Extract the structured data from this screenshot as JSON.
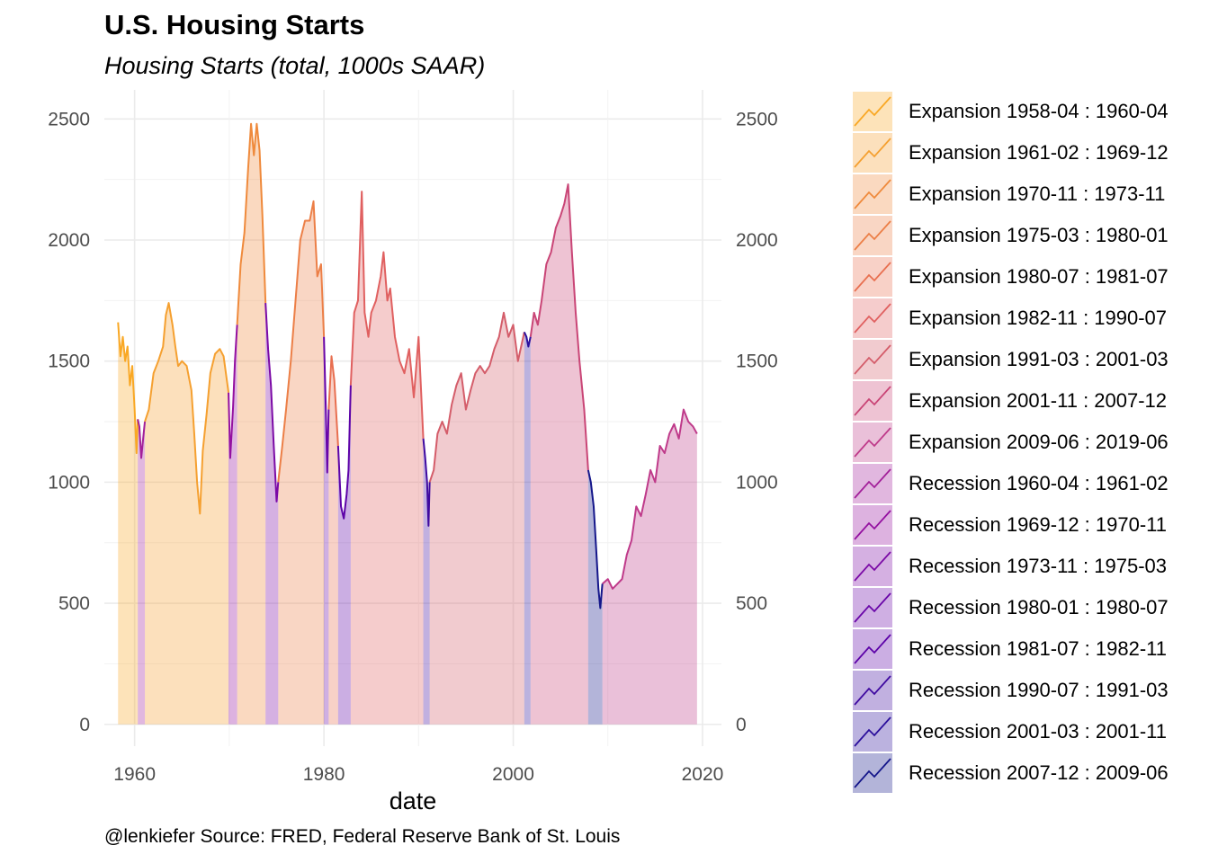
{
  "title": "U.S. Housing Starts",
  "subtitle": "Housing Starts (total, 1000s SAAR)",
  "caption": "@lenkiefer Source: FRED, Federal Reserve Bank of St. Louis",
  "chart_data": {
    "type": "area",
    "xlabel": "date",
    "ylabel": "",
    "xlim": [
      1956.8,
      2022
    ],
    "ylim": [
      -90,
      2620
    ],
    "x_ticks": [
      "1960",
      "1980",
      "2000",
      "2020"
    ],
    "y_ticks_left": [
      "0",
      "500",
      "1000",
      "1500",
      "2000",
      "2500"
    ],
    "y_ticks_right": [
      "0",
      "500",
      "1000",
      "1500",
      "2000",
      "2500"
    ],
    "grid": true,
    "legend_position": "right",
    "periods": [
      {
        "label": "Expansion 1958-04 : 1960-04",
        "start": 1958.25,
        "end": 1960.33,
        "color": "#f9a825",
        "points": [
          [
            1958.25,
            1660
          ],
          [
            1958.5,
            1520
          ],
          [
            1958.75,
            1600
          ],
          [
            1959.0,
            1500
          ],
          [
            1959.25,
            1560
          ],
          [
            1959.5,
            1400
          ],
          [
            1959.75,
            1480
          ],
          [
            1960.0,
            1300
          ],
          [
            1960.2,
            1120
          ],
          [
            1960.33,
            1260
          ]
        ]
      },
      {
        "label": "Expansion 1961-02 : 1969-12",
        "start": 1961.08,
        "end": 1969.92,
        "color": "#f5a030",
        "points": [
          [
            1961.08,
            1250
          ],
          [
            1961.5,
            1300
          ],
          [
            1962.0,
            1450
          ],
          [
            1962.5,
            1500
          ],
          [
            1963.0,
            1560
          ],
          [
            1963.3,
            1690
          ],
          [
            1963.6,
            1740
          ],
          [
            1964.0,
            1650
          ],
          [
            1964.3,
            1560
          ],
          [
            1964.6,
            1480
          ],
          [
            1965.0,
            1500
          ],
          [
            1965.5,
            1480
          ],
          [
            1966.0,
            1380
          ],
          [
            1966.3,
            1200
          ],
          [
            1966.6,
            1000
          ],
          [
            1966.9,
            870
          ],
          [
            1967.2,
            1130
          ],
          [
            1967.6,
            1280
          ],
          [
            1968.0,
            1450
          ],
          [
            1968.5,
            1530
          ],
          [
            1969.0,
            1550
          ],
          [
            1969.4,
            1520
          ],
          [
            1969.92,
            1370
          ]
        ]
      },
      {
        "label": "Expansion 1970-11 : 1973-11",
        "start": 1970.83,
        "end": 1973.83,
        "color": "#ef8a3c",
        "points": [
          [
            1970.83,
            1650
          ],
          [
            1971.2,
            1900
          ],
          [
            1971.6,
            2030
          ],
          [
            1972.0,
            2300
          ],
          [
            1972.3,
            2480
          ],
          [
            1972.6,
            2350
          ],
          [
            1972.9,
            2480
          ],
          [
            1973.2,
            2370
          ],
          [
            1973.5,
            2100
          ],
          [
            1973.83,
            1740
          ]
        ]
      },
      {
        "label": "Expansion 1975-03 : 1980-01",
        "start": 1975.17,
        "end": 1980.0,
        "color": "#ec7f47",
        "points": [
          [
            1975.17,
            1000
          ],
          [
            1975.6,
            1150
          ],
          [
            1976.0,
            1300
          ],
          [
            1976.5,
            1500
          ],
          [
            1977.0,
            1750
          ],
          [
            1977.5,
            2000
          ],
          [
            1978.0,
            2080
          ],
          [
            1978.5,
            2080
          ],
          [
            1978.9,
            2160
          ],
          [
            1979.3,
            1850
          ],
          [
            1979.7,
            1900
          ],
          [
            1980.0,
            1600
          ]
        ]
      },
      {
        "label": "Expansion 1980-07 : 1981-07",
        "start": 1980.5,
        "end": 1981.5,
        "color": "#e86f50",
        "points": [
          [
            1980.5,
            1300
          ],
          [
            1980.8,
            1520
          ],
          [
            1981.1,
            1420
          ],
          [
            1981.5,
            1150
          ]
        ]
      },
      {
        "label": "Expansion 1982-11 : 1990-07",
        "start": 1982.83,
        "end": 1990.5,
        "color": "#e06060",
        "points": [
          [
            1982.83,
            1400
          ],
          [
            1983.2,
            1700
          ],
          [
            1983.6,
            1750
          ],
          [
            1984.0,
            2200
          ],
          [
            1984.3,
            1700
          ],
          [
            1984.7,
            1600
          ],
          [
            1985.0,
            1700
          ],
          [
            1985.5,
            1750
          ],
          [
            1986.0,
            1850
          ],
          [
            1986.3,
            1950
          ],
          [
            1986.7,
            1750
          ],
          [
            1987.0,
            1800
          ],
          [
            1987.5,
            1600
          ],
          [
            1988.0,
            1500
          ],
          [
            1988.5,
            1450
          ],
          [
            1989.0,
            1550
          ],
          [
            1989.5,
            1350
          ],
          [
            1990.0,
            1600
          ],
          [
            1990.5,
            1180
          ]
        ]
      },
      {
        "label": "Expansion 1991-03 : 2001-03",
        "start": 1991.17,
        "end": 2001.17,
        "color": "#d45d6a",
        "points": [
          [
            1991.17,
            1000
          ],
          [
            1991.6,
            1050
          ],
          [
            1992.0,
            1200
          ],
          [
            1992.5,
            1250
          ],
          [
            1993.0,
            1200
          ],
          [
            1993.5,
            1320
          ],
          [
            1994.0,
            1400
          ],
          [
            1994.5,
            1450
          ],
          [
            1995.0,
            1300
          ],
          [
            1995.5,
            1380
          ],
          [
            1996.0,
            1450
          ],
          [
            1996.5,
            1480
          ],
          [
            1997.0,
            1450
          ],
          [
            1997.5,
            1480
          ],
          [
            1998.0,
            1550
          ],
          [
            1998.5,
            1600
          ],
          [
            1999.0,
            1700
          ],
          [
            1999.5,
            1600
          ],
          [
            2000.0,
            1650
          ],
          [
            2000.5,
            1500
          ],
          [
            2001.17,
            1620
          ]
        ]
      },
      {
        "label": "Expansion 2001-11 : 2007-12",
        "start": 2001.83,
        "end": 2007.92,
        "color": "#c94576",
        "points": [
          [
            2001.83,
            1600
          ],
          [
            2002.2,
            1700
          ],
          [
            2002.6,
            1650
          ],
          [
            2003.0,
            1750
          ],
          [
            2003.5,
            1900
          ],
          [
            2004.0,
            1950
          ],
          [
            2004.5,
            2050
          ],
          [
            2005.0,
            2100
          ],
          [
            2005.4,
            2150
          ],
          [
            2005.8,
            2230
          ],
          [
            2006.2,
            1950
          ],
          [
            2006.6,
            1700
          ],
          [
            2007.0,
            1500
          ],
          [
            2007.5,
            1300
          ],
          [
            2007.92,
            1050
          ]
        ]
      },
      {
        "label": "Expansion 2009-06 : 2019-06",
        "start": 2009.42,
        "end": 2019.42,
        "color": "#bf3a8a",
        "points": [
          [
            2009.42,
            580
          ],
          [
            2010.0,
            600
          ],
          [
            2010.5,
            560
          ],
          [
            2011.0,
            580
          ],
          [
            2011.5,
            600
          ],
          [
            2012.0,
            700
          ],
          [
            2012.5,
            760
          ],
          [
            2013.0,
            900
          ],
          [
            2013.5,
            860
          ],
          [
            2014.0,
            950
          ],
          [
            2014.5,
            1050
          ],
          [
            2015.0,
            1000
          ],
          [
            2015.5,
            1150
          ],
          [
            2016.0,
            1120
          ],
          [
            2016.5,
            1200
          ],
          [
            2017.0,
            1240
          ],
          [
            2017.5,
            1180
          ],
          [
            2018.0,
            1300
          ],
          [
            2018.5,
            1250
          ],
          [
            2019.0,
            1230
          ],
          [
            2019.42,
            1200
          ]
        ]
      },
      {
        "label": "Recession 1960-04 : 1961-02",
        "start": 1960.33,
        "end": 1961.08,
        "color": "#a3209a",
        "points": [
          [
            1960.33,
            1260
          ],
          [
            1960.5,
            1230
          ],
          [
            1960.7,
            1100
          ],
          [
            1960.9,
            1180
          ],
          [
            1961.08,
            1250
          ]
        ]
      },
      {
        "label": "Recession 1969-12 : 1970-11",
        "start": 1969.92,
        "end": 1970.83,
        "color": "#9410a0",
        "points": [
          [
            1969.92,
            1370
          ],
          [
            1970.1,
            1100
          ],
          [
            1970.4,
            1310
          ],
          [
            1970.6,
            1500
          ],
          [
            1970.83,
            1650
          ]
        ]
      },
      {
        "label": "Recession 1973-11 : 1975-03",
        "start": 1973.83,
        "end": 1975.17,
        "color": "#7b0aa6",
        "points": [
          [
            1973.83,
            1740
          ],
          [
            1974.1,
            1550
          ],
          [
            1974.4,
            1400
          ],
          [
            1974.7,
            1150
          ],
          [
            1975.0,
            920
          ],
          [
            1975.17,
            1000
          ]
        ]
      },
      {
        "label": "Recession 1980-01 : 1980-07",
        "start": 1980.0,
        "end": 1980.5,
        "color": "#6906a8",
        "points": [
          [
            1980.0,
            1600
          ],
          [
            1980.2,
            1300
          ],
          [
            1980.35,
            1040
          ],
          [
            1980.5,
            1300
          ]
        ]
      },
      {
        "label": "Recession 1981-07 : 1982-11",
        "start": 1981.5,
        "end": 1982.83,
        "color": "#5c02a8",
        "points": [
          [
            1981.5,
            1150
          ],
          [
            1981.8,
            900
          ],
          [
            1982.1,
            850
          ],
          [
            1982.4,
            950
          ],
          [
            1982.6,
            1050
          ],
          [
            1982.83,
            1400
          ]
        ]
      },
      {
        "label": "Recession 1990-07 : 1991-03",
        "start": 1990.5,
        "end": 1991.17,
        "color": "#3f0aa0",
        "points": [
          [
            1990.5,
            1180
          ],
          [
            1990.7,
            1100
          ],
          [
            1990.9,
            1000
          ],
          [
            1991.05,
            820
          ],
          [
            1991.17,
            1000
          ]
        ]
      },
      {
        "label": "Recession 2001-03 : 2001-11",
        "start": 2001.17,
        "end": 2001.83,
        "color": "#2b0f9c",
        "points": [
          [
            2001.17,
            1620
          ],
          [
            2001.4,
            1600
          ],
          [
            2001.6,
            1560
          ],
          [
            2001.83,
            1600
          ]
        ]
      },
      {
        "label": "Recession 2007-12 : 2009-06",
        "start": 2007.92,
        "end": 2009.42,
        "color": "#14168a",
        "points": [
          [
            2007.92,
            1050
          ],
          [
            2008.2,
            1000
          ],
          [
            2008.5,
            900
          ],
          [
            2008.8,
            700
          ],
          [
            2009.0,
            560
          ],
          [
            2009.2,
            480
          ],
          [
            2009.42,
            580
          ]
        ]
      }
    ]
  }
}
